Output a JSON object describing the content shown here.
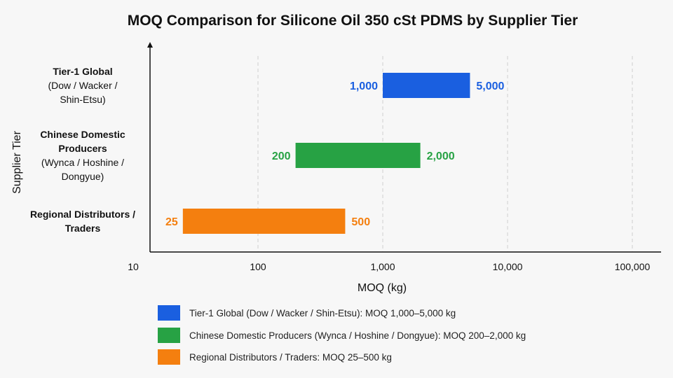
{
  "chart_data": {
    "type": "bar",
    "subtype": "floating-range-horizontal",
    "title": "MOQ Comparison for Silicone Oil 350 cSt PDMS by Supplier Tier",
    "xlabel": "MOQ (kg)",
    "ylabel": "Supplier Tier",
    "x_scale": "log",
    "xlim": [
      10,
      150000
    ],
    "x_ticks": [
      10,
      100,
      1000,
      10000,
      100000
    ],
    "x_tick_labels": [
      "10",
      "100",
      "1,000",
      "10,000",
      "100,000"
    ],
    "grid": "vertical-dashed",
    "legend_position": "bottom",
    "categories": [
      {
        "lines": [
          {
            "text": "Tier-1 Global",
            "bold": true
          },
          {
            "text": "(Dow / Wacker /",
            "bold": false
          },
          {
            "text": "Shin-Etsu)",
            "bold": false
          }
        ]
      },
      {
        "lines": [
          {
            "text": "Chinese Domestic",
            "bold": true
          },
          {
            "text": "Producers",
            "bold": true
          },
          {
            "text": "(Wynca / Hoshine /",
            "bold": false
          },
          {
            "text": "Dongyue)",
            "bold": false
          }
        ]
      },
      {
        "lines": [
          {
            "text": "Regional Distributors /",
            "bold": true
          },
          {
            "text": "Traders",
            "bold": true
          }
        ]
      }
    ],
    "series": [
      {
        "name": "Tier-1 Global (Dow / Wacker / Shin-Etsu): MOQ 1,000–5,000 kg",
        "color": "#1a5fe0",
        "min": 1000,
        "max": 5000,
        "min_label": "1,000",
        "max_label": "5,000"
      },
      {
        "name": "Chinese Domestic Producers (Wynca / Hoshine / Dongyue): MOQ 200–2,000 kg",
        "color": "#27a244",
        "min": 200,
        "max": 2000,
        "min_label": "200",
        "max_label": "2,000"
      },
      {
        "name": "Regional Distributors / Traders:  MOQ 25–500 kg",
        "color": "#f47f0f",
        "min": 25,
        "max": 500,
        "min_label": "25",
        "max_label": "500"
      }
    ]
  }
}
